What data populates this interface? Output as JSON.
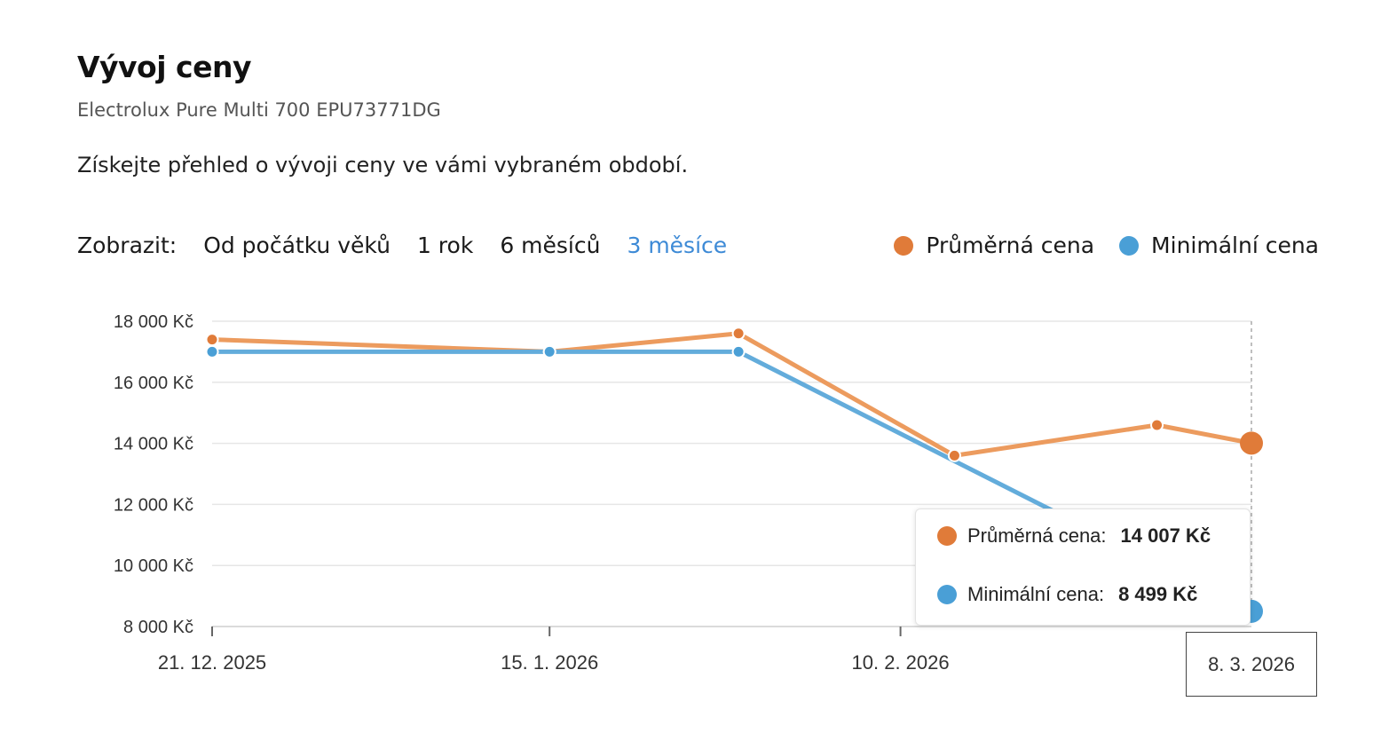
{
  "header": {
    "title": "Vývoj ceny",
    "subtitle": "Electrolux Pure Multi 700 EPU73771DG",
    "description": "Získejte přehled o vývoji ceny ve vámi vybraném období."
  },
  "filters": {
    "label": "Zobrazit:",
    "options": [
      "Od počátku věků",
      "1 rok",
      "6 měsíců",
      "3 měsíce"
    ],
    "active": "3 měsíce"
  },
  "colors": {
    "average": "#e07b39",
    "average_line": "#ec9b5e",
    "minimum": "#4a9fd6",
    "minimum_line": "#63acdb",
    "active_filter": "#3d8ad6"
  },
  "chart_data": {
    "type": "line",
    "x": [
      "2025-12-21",
      "2026-01-15",
      "2026-01-29",
      "2026-02-14",
      "2026-03-01",
      "2026-03-08"
    ],
    "series": [
      {
        "name": "Průměrná cena",
        "values": [
          17400,
          17000,
          17600,
          13600,
          14600,
          14007
        ]
      },
      {
        "name": "Minimální cena",
        "values": [
          17000,
          17000,
          17000,
          null,
          null,
          8499
        ]
      }
    ],
    "yticks": [
      "18 000 Kč",
      "16 000 Kč",
      "14 000 Kč",
      "12 000 Kč",
      "10 000 Kč",
      "8 000 Kč"
    ],
    "ylim": [
      8000,
      18000
    ],
    "xticks": [
      {
        "date": "2025-12-21",
        "label": "21. 12. 2025"
      },
      {
        "date": "2026-01-15",
        "label": "15. 1. 2026"
      },
      {
        "date": "2026-02-10",
        "label": "10. 2. 2026"
      }
    ],
    "xlim": [
      "2025-12-21",
      "2026-03-08"
    ],
    "grid": true,
    "legend": "top-right",
    "hover": {
      "date": "2026-03-08",
      "date_label": "8. 3. 2026",
      "rows": [
        {
          "label": "Průměrná cena:",
          "value": "14 007 Kč"
        },
        {
          "label": "Minimální cena:",
          "value": "8 499 Kč"
        }
      ]
    }
  }
}
